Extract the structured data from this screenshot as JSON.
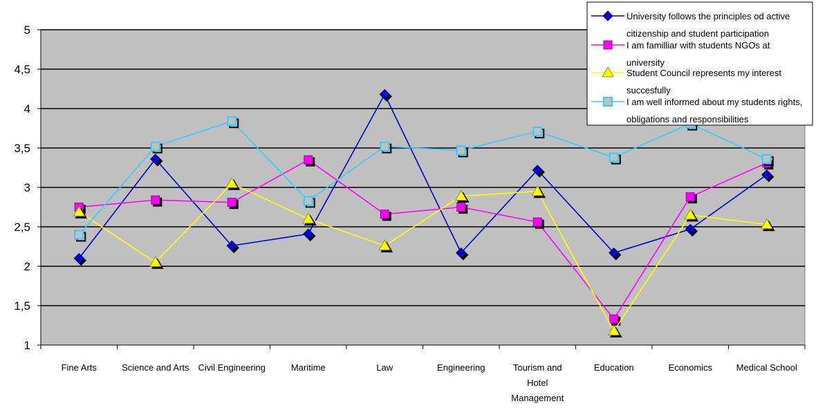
{
  "chart_data": {
    "type": "line",
    "title": "",
    "xlabel": "",
    "ylabel": "",
    "ylim": [
      1,
      5
    ],
    "yticks": [
      "1",
      "1,5",
      "2",
      "2,5",
      "3",
      "3,5",
      "4",
      "4,5",
      "5"
    ],
    "grid": true,
    "legend_position": "top-right",
    "categories": [
      [
        "Fine Arts"
      ],
      [
        "Science and Arts"
      ],
      [
        "Civil Engineering"
      ],
      [
        "Maritime"
      ],
      [
        "Law"
      ],
      [
        "Engineering"
      ],
      [
        "Tourism and",
        "Hotel",
        "Management"
      ],
      [
        "Education"
      ],
      [
        "Economics"
      ],
      [
        "Medical School"
      ]
    ],
    "series": [
      {
        "name_lines": [
          "University follows the principles od active",
          "citizenship and student participation"
        ],
        "color": "#0000CC",
        "marker": "diamond",
        "values": [
          2.1,
          3.36,
          2.26,
          2.41,
          4.18,
          2.17,
          3.22,
          2.17,
          2.47,
          3.16
        ]
      },
      {
        "name_lines": [
          "I am familliar with students NGOs at",
          "university"
        ],
        "color": "#FF00FF",
        "marker": "square",
        "values": [
          2.75,
          2.84,
          2.81,
          3.35,
          2.66,
          2.75,
          2.56,
          1.33,
          2.88,
          3.31
        ]
      },
      {
        "name_lines": [
          "Student Council represents my interest",
          "succesfully"
        ],
        "color": "#FFFF00",
        "marker": "triangle",
        "values": [
          2.69,
          2.05,
          3.05,
          2.6,
          2.26,
          2.89,
          2.95,
          1.18,
          2.65,
          2.53
        ]
      },
      {
        "name_lines": [
          "I am well informed about my students rights,",
          "obligations and responsibilities"
        ],
        "color": "#33CCFF",
        "marker": "open-square",
        "values": [
          2.4,
          3.52,
          3.84,
          2.83,
          3.52,
          3.47,
          3.71,
          3.38,
          3.81,
          3.36
        ]
      }
    ]
  }
}
